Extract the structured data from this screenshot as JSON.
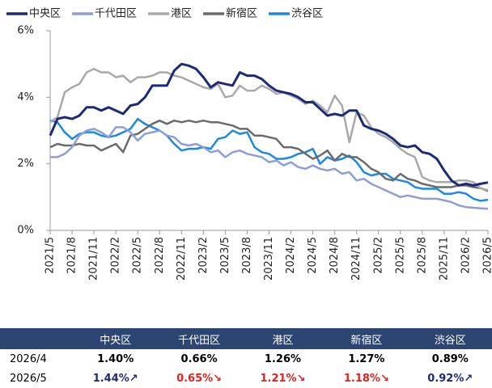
{
  "chart_data": {
    "type": "line",
    "categories": [
      "2021/5",
      null,
      null,
      "2021/8",
      null,
      null,
      "2021/11",
      null,
      null,
      "2022/2",
      null,
      null,
      "2022/5",
      null,
      null,
      "2022/8",
      null,
      null,
      "2022/11",
      null,
      null,
      "2023/2",
      null,
      null,
      "2023/5",
      null,
      null,
      "2023/8",
      null,
      null,
      "2023/11",
      null,
      null,
      "2024/2",
      null,
      null,
      "2024/5",
      null,
      null,
      "2024/8",
      null,
      null,
      "2024/11",
      null,
      null,
      "2025/2",
      null,
      null,
      "2025/5",
      null,
      null,
      "2025/8",
      null,
      null,
      "2025/11",
      null,
      null,
      "2026/2",
      null,
      null,
      "2026/5"
    ],
    "ylim": [
      0,
      6
    ],
    "yticks": [
      {
        "value": 0,
        "label": "0%"
      },
      {
        "value": 2,
        "label": "2%"
      },
      {
        "value": 4,
        "label": "4%"
      },
      {
        "value": 6,
        "label": "6%"
      }
    ],
    "grid": false,
    "legend": "top",
    "series": [
      {
        "name": "中央区",
        "color": "#1c2a78",
        "values": [
          2.85,
          3.35,
          3.4,
          3.35,
          3.45,
          3.7,
          3.7,
          3.6,
          3.7,
          3.6,
          3.5,
          3.75,
          3.8,
          4.0,
          4.35,
          4.35,
          4.35,
          4.8,
          5.0,
          4.95,
          4.85,
          4.6,
          4.3,
          4.45,
          4.4,
          4.35,
          4.75,
          4.65,
          4.65,
          4.55,
          4.35,
          4.2,
          4.15,
          4.1,
          4.0,
          3.85,
          3.85,
          3.65,
          3.45,
          3.5,
          3.45,
          3.6,
          3.6,
          3.15,
          3.05,
          3.0,
          2.9,
          2.75,
          2.55,
          2.5,
          2.55,
          2.35,
          2.3,
          2.15,
          1.8,
          1.5,
          1.35,
          1.4,
          1.35,
          1.4,
          1.44
        ]
      },
      {
        "name": "千代田区",
        "color": "#8e9fd8",
        "values": [
          2.2,
          2.2,
          2.3,
          2.5,
          2.85,
          3.0,
          3.05,
          2.95,
          2.8,
          3.1,
          3.1,
          2.95,
          2.7,
          2.9,
          2.95,
          3.0,
          2.85,
          2.8,
          2.6,
          2.55,
          2.6,
          2.5,
          2.35,
          2.4,
          2.2,
          2.35,
          2.4,
          2.3,
          2.25,
          2.2,
          2.05,
          2.1,
          1.95,
          2.05,
          1.9,
          1.85,
          1.95,
          1.85,
          1.8,
          1.85,
          1.7,
          1.75,
          1.5,
          1.55,
          1.4,
          1.3,
          1.2,
          1.1,
          1.0,
          1.05,
          1.0,
          0.95,
          0.95,
          0.95,
          0.9,
          0.85,
          0.75,
          0.7,
          0.68,
          0.66,
          0.65
        ]
      },
      {
        "name": "港区",
        "color": "#a9a9a9",
        "values": [
          3.25,
          3.4,
          4.15,
          4.3,
          4.4,
          4.75,
          4.85,
          4.75,
          4.75,
          4.6,
          4.65,
          4.45,
          4.6,
          4.6,
          4.65,
          4.75,
          4.75,
          4.65,
          4.6,
          4.5,
          4.4,
          4.3,
          4.25,
          4.4,
          4.0,
          4.05,
          4.35,
          4.2,
          4.2,
          4.35,
          4.25,
          4.1,
          4.15,
          4.05,
          3.95,
          3.8,
          3.9,
          3.75,
          3.55,
          4.05,
          3.75,
          2.65,
          3.55,
          3.45,
          3.1,
          2.9,
          2.8,
          2.65,
          2.45,
          2.3,
          2.2,
          1.6,
          1.5,
          1.45,
          1.45,
          1.45,
          1.5,
          1.5,
          1.45,
          1.26,
          1.21
        ]
      },
      {
        "name": "新宿区",
        "color": "#6b6b6b",
        "values": [
          2.5,
          2.6,
          2.55,
          2.55,
          2.6,
          2.55,
          2.55,
          2.4,
          2.5,
          2.6,
          2.35,
          2.85,
          2.9,
          3.05,
          3.2,
          3.3,
          3.2,
          3.3,
          3.25,
          3.3,
          3.25,
          3.3,
          3.25,
          3.25,
          3.2,
          3.15,
          3.05,
          3.05,
          2.85,
          2.85,
          2.8,
          2.75,
          2.5,
          2.5,
          2.45,
          2.3,
          2.15,
          2.25,
          2.4,
          2.1,
          2.3,
          2.2,
          2.2,
          2.05,
          1.85,
          1.75,
          1.55,
          1.5,
          1.7,
          1.55,
          1.5,
          1.4,
          1.35,
          1.3,
          1.3,
          1.3,
          1.35,
          1.35,
          1.3,
          1.27,
          1.18
        ]
      },
      {
        "name": "渋谷区",
        "color": "#1e88e5",
        "values": [
          3.3,
          3.25,
          2.95,
          2.75,
          2.9,
          2.95,
          2.95,
          2.85,
          2.8,
          2.85,
          2.95,
          3.05,
          3.35,
          3.2,
          3.1,
          3.0,
          2.85,
          2.6,
          2.4,
          2.45,
          2.45,
          2.5,
          2.45,
          2.75,
          2.8,
          3.0,
          2.9,
          2.95,
          2.5,
          2.35,
          2.3,
          2.15,
          2.15,
          2.2,
          2.3,
          2.35,
          2.45,
          2.0,
          2.2,
          2.1,
          2.15,
          2.25,
          2.05,
          1.75,
          1.65,
          1.7,
          1.7,
          1.55,
          1.5,
          1.45,
          1.3,
          1.25,
          1.25,
          1.25,
          1.1,
          1.1,
          1.15,
          1.1,
          0.95,
          0.89,
          0.92
        ]
      }
    ]
  },
  "table": {
    "header": [
      "中央区",
      "千代田区",
      "港区",
      "新宿区",
      "渋谷区"
    ],
    "rows": [
      {
        "label": "2026/4",
        "cells": [
          "1.40%",
          "0.66%",
          "1.26%",
          "1.27%",
          "0.89%"
        ]
      },
      {
        "label": "2026/5",
        "cells": [
          "1.44%↗",
          "0.65%↘",
          "1.21%↘",
          "1.18%↘",
          "0.92%↗"
        ]
      }
    ]
  }
}
